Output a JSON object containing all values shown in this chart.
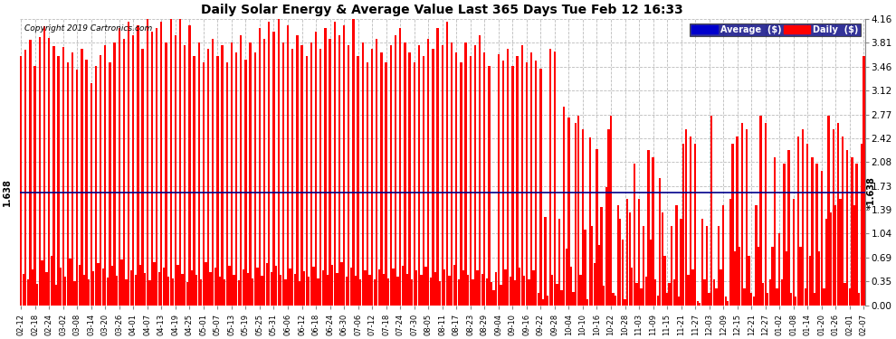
{
  "title": "Daily Solar Energy & Average Value Last 365 Days Tue Feb 12 16:33",
  "copyright": "Copyright 2019 Cartronics.com",
  "average_value": 1.638,
  "average_label": "1.638",
  "ylim": [
    0.0,
    4.16
  ],
  "yticks": [
    0.0,
    0.35,
    0.69,
    1.04,
    1.39,
    1.73,
    2.08,
    2.42,
    2.77,
    3.12,
    3.46,
    3.81,
    4.16
  ],
  "bar_color": "#FF0000",
  "avg_line_color": "#00008B",
  "background_color": "#FFFFFF",
  "plot_bg_color": "#FFFFFF",
  "grid_color": "#BBBBBB",
  "legend_avg_bg": "#0000CC",
  "legend_daily_bg": "#FF0000",
  "x_labels": [
    "02-12",
    "02-18",
    "02-24",
    "03-02",
    "03-08",
    "03-14",
    "03-20",
    "03-26",
    "04-01",
    "04-07",
    "04-13",
    "04-19",
    "04-25",
    "05-01",
    "05-07",
    "05-13",
    "05-19",
    "05-25",
    "05-31",
    "06-06",
    "06-12",
    "06-18",
    "06-24",
    "06-30",
    "07-06",
    "07-12",
    "07-18",
    "07-24",
    "07-30",
    "08-05",
    "08-11",
    "08-17",
    "08-23",
    "08-29",
    "09-04",
    "09-10",
    "09-16",
    "09-22",
    "09-28",
    "10-04",
    "10-10",
    "10-16",
    "10-22",
    "10-28",
    "11-03",
    "11-09",
    "11-15",
    "11-21",
    "11-27",
    "12-03",
    "12-09",
    "12-15",
    "12-21",
    "12-27",
    "01-02",
    "01-08",
    "01-14",
    "01-20",
    "01-26",
    "02-01",
    "02-07"
  ],
  "daily_values": [
    3.62,
    0.45,
    3.71,
    0.38,
    3.85,
    0.52,
    3.48,
    0.31,
    3.9,
    0.65,
    4.05,
    0.48,
    3.88,
    0.72,
    3.76,
    0.29,
    3.62,
    0.55,
    3.75,
    0.41,
    3.52,
    0.68,
    3.67,
    0.35,
    3.42,
    0.58,
    3.72,
    0.44,
    3.57,
    0.37,
    3.22,
    0.49,
    3.47,
    0.61,
    3.63,
    0.53,
    3.77,
    0.4,
    3.53,
    0.57,
    3.82,
    0.43,
    4.02,
    0.66,
    3.87,
    0.38,
    4.12,
    0.51,
    3.92,
    0.44,
    4.07,
    0.59,
    3.72,
    0.47,
    4.17,
    0.36,
    3.97,
    0.62,
    4.02,
    0.48,
    4.12,
    0.55,
    3.82,
    0.42,
    4.22,
    0.39,
    3.92,
    0.58,
    4.17,
    0.46,
    3.77,
    0.33,
    4.07,
    0.51,
    3.62,
    0.44,
    3.82,
    0.37,
    3.52,
    0.62,
    3.72,
    0.48,
    3.87,
    0.55,
    3.62,
    0.41,
    3.77,
    0.38,
    3.52,
    0.57,
    3.82,
    0.44,
    3.67,
    0.36,
    3.92,
    0.52,
    3.57,
    0.47,
    3.82,
    0.39,
    3.67,
    0.55,
    4.02,
    0.43,
    3.87,
    0.61,
    4.12,
    0.48,
    3.97,
    0.57,
    4.17,
    0.44,
    3.82,
    0.38,
    4.07,
    0.53,
    3.72,
    0.46,
    3.92,
    0.35,
    3.77,
    0.49,
    3.62,
    0.42,
    3.82,
    0.56,
    3.97,
    0.39,
    3.72,
    0.51,
    4.02,
    0.44,
    3.87,
    0.58,
    4.12,
    0.47,
    3.92,
    0.62,
    4.07,
    0.41,
    3.77,
    0.55,
    4.17,
    0.43,
    3.62,
    0.37,
    3.82,
    0.5,
    3.52,
    0.44,
    3.72,
    0.38,
    3.87,
    0.52,
    3.67,
    0.46,
    3.52,
    0.39,
    3.77,
    0.53,
    3.92,
    0.42,
    4.02,
    0.57,
    3.82,
    0.45,
    3.67,
    0.38,
    3.52,
    0.51,
    3.77,
    0.44,
    3.62,
    0.56,
    3.87,
    0.4,
    3.72,
    0.48,
    4.02,
    0.35,
    3.77,
    0.52,
    4.12,
    0.43,
    3.82,
    0.59,
    3.67,
    0.37,
    3.52,
    0.5,
    3.82,
    0.44,
    3.62,
    0.38,
    3.77,
    0.51,
    3.92,
    0.45,
    3.67,
    0.39,
    3.48,
    0.33,
    0.22,
    0.48,
    3.65,
    0.29,
    3.55,
    0.52,
    3.72,
    0.41,
    3.48,
    0.36,
    3.62,
    0.55,
    3.77,
    0.43,
    3.52,
    0.38,
    3.67,
    0.51,
    3.55,
    0.18,
    3.44,
    0.08,
    1.28,
    0.14,
    3.72,
    0.44,
    3.68,
    0.31,
    1.25,
    0.22,
    2.88,
    0.82,
    2.72,
    0.56,
    0.19,
    2.65,
    2.75,
    0.44,
    2.55,
    1.1,
    0.08,
    2.44,
    1.15,
    0.61,
    2.27,
    0.88,
    1.42,
    0.28,
    1.72,
    2.55,
    2.75,
    0.18,
    0.14,
    1.45,
    1.25,
    0.95,
    0.08,
    1.55,
    1.35,
    0.55,
    2.05,
    0.32,
    1.55,
    0.25,
    1.15,
    0.42,
    2.25,
    0.95,
    2.15,
    0.38,
    0.14,
    1.85,
    1.35,
    0.72,
    0.18,
    0.32,
    1.15,
    0.38,
    1.45,
    0.12,
    1.25,
    2.35,
    2.55,
    0.44,
    2.45,
    0.52,
    2.35,
    0.06,
    0.03,
    1.25,
    0.38,
    1.15,
    0.18,
    2.75,
    0.38,
    0.24,
    1.15,
    0.52,
    1.45,
    0.12,
    0.06,
    1.55,
    2.35,
    0.78,
    2.45,
    0.85,
    2.65,
    0.25,
    2.55,
    0.72,
    0.18,
    0.12,
    1.45,
    0.85,
    2.75,
    0.32,
    2.65,
    0.18,
    0.38,
    0.85,
    2.15,
    0.24,
    1.05,
    0.38,
    2.05,
    0.78,
    2.25,
    0.18,
    1.55,
    0.12,
    2.45,
    0.85,
    2.55,
    0.24,
    2.35,
    0.72,
    2.15,
    0.18,
    2.05,
    0.78,
    1.95,
    0.24,
    1.25,
    2.75,
    1.35,
    2.55,
    1.45,
    2.65,
    1.55,
    2.45,
    0.32,
    2.25,
    0.24,
    2.15,
    1.45,
    2.05,
    0.18,
    2.35,
    3.62
  ]
}
